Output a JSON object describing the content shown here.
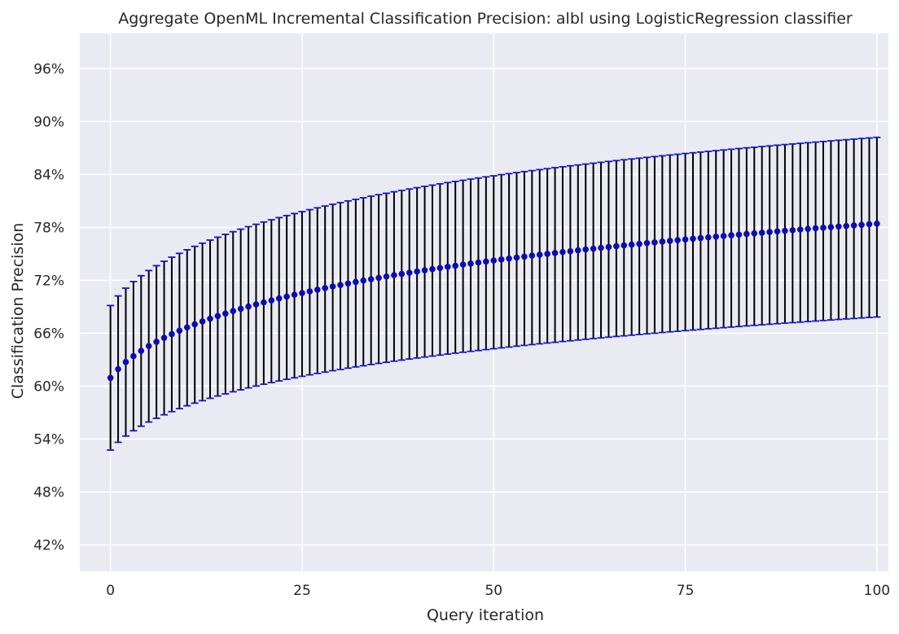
{
  "chart_data": {
    "type": "scatter",
    "title": "Aggregate OpenML Incremental Classification Precision: albl using LogisticRegression classifier",
    "xlabel": "Query iteration",
    "ylabel": "Classification Precision",
    "xlim": [
      -4,
      101.5
    ],
    "ylim": [
      0.39,
      1.0
    ],
    "x_ticks": [
      0,
      25,
      50,
      75,
      100
    ],
    "x_tick_labels": [
      "0",
      "25",
      "50",
      "75",
      "100"
    ],
    "y_ticks": [
      0.42,
      0.48,
      0.54,
      0.6,
      0.66,
      0.72,
      0.78,
      0.84,
      0.9,
      0.96
    ],
    "y_tick_labels": [
      "42%",
      "48%",
      "54%",
      "60%",
      "66%",
      "72%",
      "78%",
      "84%",
      "90%",
      "96%"
    ],
    "grid": true,
    "background_color": "#eaeaf2",
    "grid_color": "#ffffff",
    "colors": {
      "marker": "#0b0bb3",
      "error_bar": "#000000",
      "cap": "#1414d0"
    },
    "series": [
      {
        "marker": "circle",
        "x": [
          0,
          1,
          2,
          3,
          4,
          5,
          6,
          7,
          8,
          9,
          10,
          11,
          12,
          13,
          14,
          15,
          16,
          17,
          18,
          19,
          20,
          21,
          22,
          23,
          24,
          25,
          26,
          27,
          28,
          29,
          30,
          31,
          32,
          33,
          34,
          35,
          36,
          37,
          38,
          39,
          40,
          41,
          42,
          43,
          44,
          45,
          46,
          47,
          48,
          49,
          50,
          51,
          52,
          53,
          54,
          55,
          56,
          57,
          58,
          59,
          60,
          61,
          62,
          63,
          64,
          65,
          66,
          67,
          68,
          69,
          70,
          71,
          72,
          73,
          74,
          75,
          76,
          77,
          78,
          79,
          80,
          81,
          82,
          83,
          84,
          85,
          86,
          87,
          88,
          89,
          90,
          91,
          92,
          93,
          94,
          95,
          96,
          97,
          98,
          99,
          100
        ],
        "y": [
          0.6094,
          0.6193,
          0.6273,
          0.634,
          0.64,
          0.6454,
          0.6503,
          0.6548,
          0.659,
          0.6629,
          0.6666,
          0.6701,
          0.6734,
          0.6765,
          0.6795,
          0.6823,
          0.6851,
          0.6877,
          0.6902,
          0.6926,
          0.695,
          0.6972,
          0.6994,
          0.7015,
          0.7036,
          0.7056,
          0.7075,
          0.7094,
          0.7112,
          0.713,
          0.7147,
          0.7164,
          0.7181,
          0.7197,
          0.7213,
          0.7228,
          0.7243,
          0.7258,
          0.7272,
          0.7286,
          0.73,
          0.7314,
          0.7327,
          0.734,
          0.7353,
          0.7365,
          0.7378,
          0.739,
          0.7402,
          0.7413,
          0.7425,
          0.7436,
          0.7447,
          0.7458,
          0.7469,
          0.748,
          0.749,
          0.75,
          0.751,
          0.752,
          0.753,
          0.754,
          0.755,
          0.7559,
          0.7568,
          0.7578,
          0.7587,
          0.7596,
          0.7605,
          0.7613,
          0.7622,
          0.763,
          0.7639,
          0.7647,
          0.7655,
          0.7664,
          0.7672,
          0.768,
          0.7687,
          0.7695,
          0.7703,
          0.7711,
          0.7718,
          0.7726,
          0.7733,
          0.774,
          0.7748,
          0.7755,
          0.7762,
          0.7769,
          0.7776,
          0.7783,
          0.779,
          0.7796,
          0.7803,
          0.781,
          0.7816,
          0.7823,
          0.7829,
          0.7836,
          0.7842
        ],
        "err_lower": [
          0.5275,
          0.5363,
          0.5434,
          0.5494,
          0.5546,
          0.5593,
          0.5635,
          0.5675,
          0.5711,
          0.5745,
          0.5777,
          0.5807,
          0.5835,
          0.5862,
          0.5888,
          0.5912,
          0.5936,
          0.5958,
          0.598,
          0.6001,
          0.6021,
          0.604,
          0.6059,
          0.6077,
          0.6094,
          0.6111,
          0.6128,
          0.6144,
          0.6159,
          0.6175,
          0.6189,
          0.6204,
          0.6218,
          0.6231,
          0.6245,
          0.6258,
          0.627,
          0.6283,
          0.6295,
          0.6307,
          0.6319,
          0.633,
          0.6341,
          0.6352,
          0.6363,
          0.6374,
          0.6384,
          0.6394,
          0.6404,
          0.6414,
          0.6424,
          0.6434,
          0.6443,
          0.6453,
          0.6462,
          0.6471,
          0.648,
          0.6489,
          0.6497,
          0.6506,
          0.6514,
          0.6523,
          0.6531,
          0.6539,
          0.6547,
          0.6555,
          0.6563,
          0.657,
          0.6578,
          0.6586,
          0.6593,
          0.66,
          0.6608,
          0.6615,
          0.6622,
          0.6629,
          0.6636,
          0.6643,
          0.665,
          0.6656,
          0.6663,
          0.667,
          0.6676,
          0.6683,
          0.6689,
          0.6695,
          0.6702,
          0.6708,
          0.6714,
          0.672,
          0.6726,
          0.6732,
          0.6738,
          0.6744,
          0.675,
          0.6756,
          0.6762,
          0.6767,
          0.6773,
          0.6779,
          0.6784
        ],
        "err_upper": [
          0.6914,
          0.7023,
          0.7111,
          0.7186,
          0.7252,
          0.7311,
          0.7366,
          0.7416,
          0.7462,
          0.7506,
          0.7546,
          0.7585,
          0.7621,
          0.7656,
          0.7689,
          0.7721,
          0.7751,
          0.778,
          0.7808,
          0.7835,
          0.7861,
          0.7886,
          0.7911,
          0.7934,
          0.7957,
          0.7979,
          0.8001,
          0.8022,
          0.8042,
          0.8062,
          0.8081,
          0.81,
          0.8118,
          0.8136,
          0.8154,
          0.8171,
          0.8187,
          0.8204,
          0.8219,
          0.8235,
          0.825,
          0.8265,
          0.8279,
          0.8294,
          0.8308,
          0.8321,
          0.8334,
          0.8348,
          0.836,
          0.8373,
          0.8385,
          0.8398,
          0.8409,
          0.8421,
          0.8433,
          0.8444,
          0.8455,
          0.8466,
          0.8477,
          0.8487,
          0.8498,
          0.8508,
          0.8518,
          0.8528,
          0.8538,
          0.8548,
          0.8557,
          0.8567,
          0.8576,
          0.8585,
          0.8594,
          0.8603,
          0.8612,
          0.8621,
          0.8629,
          0.8638,
          0.8646,
          0.8654,
          0.8662,
          0.867,
          0.8678,
          0.8686,
          0.8694,
          0.8702,
          0.8709,
          0.8717,
          0.8724,
          0.8732,
          0.8739,
          0.8746,
          0.8753,
          0.876,
          0.8767,
          0.8774,
          0.8781,
          0.8788,
          0.8794,
          0.8801,
          0.8808,
          0.8814,
          0.8821
        ]
      }
    ]
  }
}
